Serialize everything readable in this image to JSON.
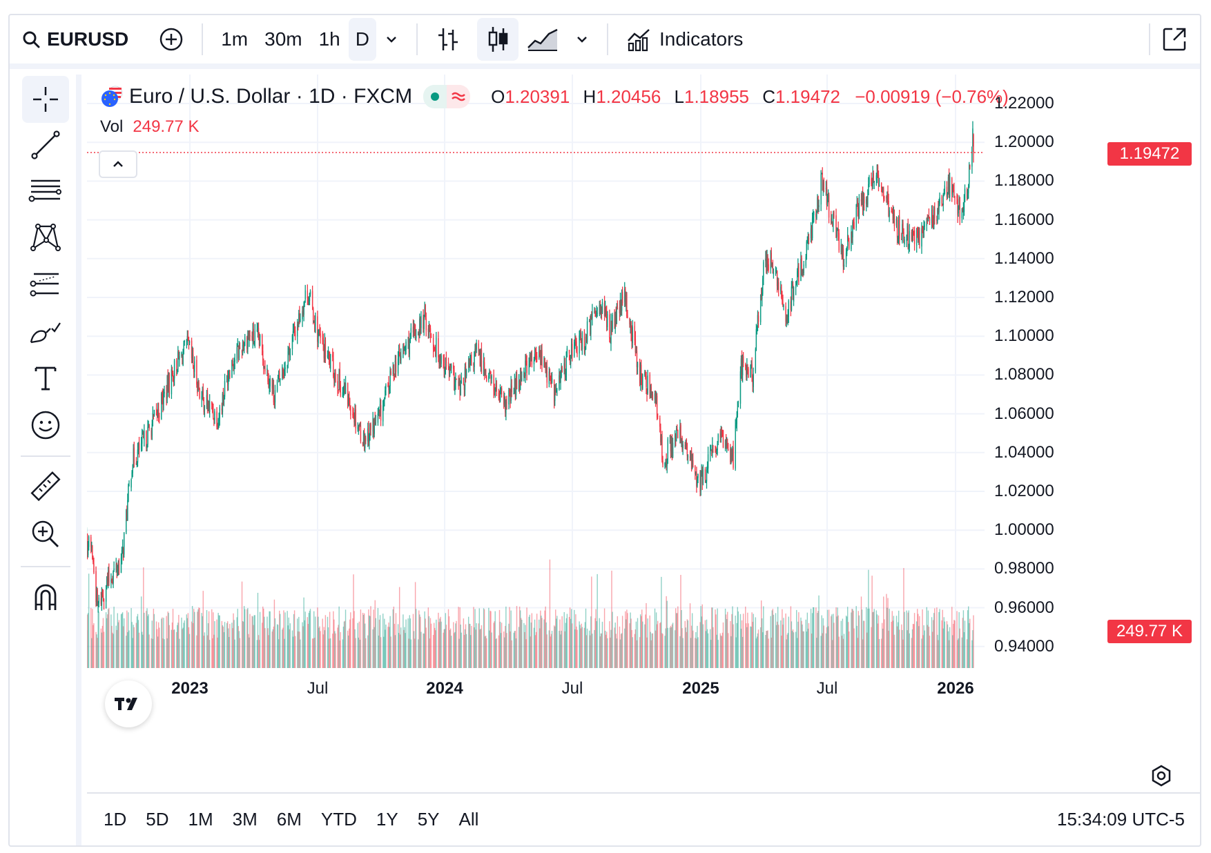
{
  "toolbar": {
    "symbol": "EURUSD",
    "intervals": [
      "1m",
      "30m",
      "1h",
      "D"
    ],
    "active_interval": "D",
    "indicators_label": "Indicators"
  },
  "legend": {
    "title": "Euro / U.S. Dollar · 1D · FXCM",
    "open_key": "O",
    "open": "1.20391",
    "high_key": "H",
    "high": "1.20456",
    "low_key": "L",
    "low": "1.18955",
    "close_key": "C",
    "close": "1.19472",
    "change": "−0.00919 (−0.76%)",
    "vol_key": "Vol",
    "vol": "249.77 K"
  },
  "price_axis": {
    "labels": [
      "1.22000",
      "1.20000",
      "1.18000",
      "1.16000",
      "1.14000",
      "1.12000",
      "1.10000",
      "1.08000",
      "1.06000",
      "1.04000",
      "1.02000",
      "1.00000",
      "0.98000",
      "0.96000",
      "0.94000"
    ],
    "last_price_tag": "1.19472",
    "volume_tag": "249.77 K"
  },
  "time_axis": {
    "labels": [
      {
        "text": "2023",
        "year": true
      },
      {
        "text": "Jul",
        "year": false
      },
      {
        "text": "2024",
        "year": true
      },
      {
        "text": "Jul",
        "year": false
      },
      {
        "text": "2025",
        "year": true
      },
      {
        "text": "Jul",
        "year": false
      },
      {
        "text": "2026",
        "year": true
      }
    ]
  },
  "ranges": [
    "1D",
    "5D",
    "1M",
    "3M",
    "6M",
    "YTD",
    "1Y",
    "5Y",
    "All"
  ],
  "clock": "15:34:09 UTC-5",
  "colors": {
    "up": "#089981",
    "down": "#f23645",
    "grid": "#f0f3fa",
    "text": "#131722"
  },
  "chart_data": {
    "type": "candlestick",
    "symbol": "EURUSD",
    "interval": "1D",
    "ylim": [
      0.93,
      1.225
    ],
    "x_range": [
      "2022-09",
      "2026-01"
    ],
    "last_close": 1.19472,
    "anchors": [
      [
        "2022-09-01",
        1.0
      ],
      [
        "2022-09-20",
        0.99
      ],
      [
        "2022-09-28",
        0.96
      ],
      [
        "2022-10-10",
        0.972
      ],
      [
        "2022-11-01",
        0.985
      ],
      [
        "2022-11-15",
        1.035
      ],
      [
        "2022-12-01",
        1.045
      ],
      [
        "2022-12-20",
        1.06
      ],
      [
        "2023-01-15",
        1.085
      ],
      [
        "2023-02-01",
        1.095
      ],
      [
        "2023-02-20",
        1.068
      ],
      [
        "2023-03-15",
        1.058
      ],
      [
        "2023-03-31",
        1.085
      ],
      [
        "2023-04-25",
        1.1
      ],
      [
        "2023-05-10",
        1.098
      ],
      [
        "2023-05-31",
        1.07
      ],
      [
        "2023-06-15",
        1.085
      ],
      [
        "2023-07-17",
        1.124
      ],
      [
        "2023-08-01",
        1.1
      ],
      [
        "2023-08-25",
        1.08
      ],
      [
        "2023-09-15",
        1.065
      ],
      [
        "2023-10-03",
        1.047
      ],
      [
        "2023-10-25",
        1.058
      ],
      [
        "2023-11-15",
        1.085
      ],
      [
        "2023-12-28",
        1.11
      ],
      [
        "2024-01-10",
        1.095
      ],
      [
        "2024-02-14",
        1.072
      ],
      [
        "2024-03-08",
        1.092
      ],
      [
        "2024-04-16",
        1.063
      ],
      [
        "2024-05-15",
        1.085
      ],
      [
        "2024-06-05",
        1.09
      ],
      [
        "2024-06-25",
        1.07
      ],
      [
        "2024-07-17",
        1.093
      ],
      [
        "2024-08-05",
        1.098
      ],
      [
        "2024-08-26",
        1.118
      ],
      [
        "2024-09-10",
        1.103
      ],
      [
        "2024-09-30",
        1.12
      ],
      [
        "2024-10-23",
        1.078
      ],
      [
        "2024-11-10",
        1.072
      ],
      [
        "2024-11-22",
        1.037
      ],
      [
        "2024-12-15",
        1.05
      ],
      [
        "2025-01-13",
        1.023
      ],
      [
        "2025-01-30",
        1.04
      ],
      [
        "2025-02-14",
        1.048
      ],
      [
        "2025-02-28",
        1.038
      ],
      [
        "2025-03-10",
        1.085
      ],
      [
        "2025-03-27",
        1.08
      ],
      [
        "2025-04-11",
        1.135
      ],
      [
        "2025-04-21",
        1.14
      ],
      [
        "2025-05-12",
        1.11
      ],
      [
        "2025-06-10",
        1.145
      ],
      [
        "2025-07-01",
        1.18
      ],
      [
        "2025-07-15",
        1.16
      ],
      [
        "2025-08-01",
        1.14
      ],
      [
        "2025-08-20",
        1.165
      ],
      [
        "2025-09-17",
        1.185
      ],
      [
        "2025-10-10",
        1.158
      ],
      [
        "2025-11-04",
        1.148
      ],
      [
        "2025-12-01",
        1.16
      ],
      [
        "2025-12-24",
        1.178
      ],
      [
        "2026-01-08",
        1.165
      ],
      [
        "2026-01-20",
        1.175
      ],
      [
        "2026-01-27",
        1.202
      ],
      [
        "2026-01-28",
        1.195
      ]
    ]
  }
}
